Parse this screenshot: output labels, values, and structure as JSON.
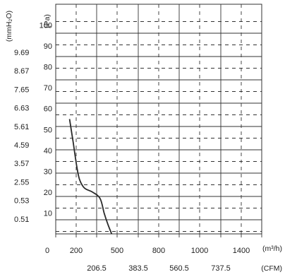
{
  "chart_data": {
    "type": "line",
    "title": "",
    "y_unit_pa": "(Pa)",
    "y_unit_mmh2o": "(mmH₂O)",
    "x_unit_m3h": "(m³/h)",
    "x_unit_cfm": "(CFM)",
    "x_zero_label": "0",
    "pa_ticks": [
      "10",
      "20",
      "30",
      "40",
      "50",
      "60",
      "70",
      "80",
      "90",
      "100"
    ],
    "mmh2o_ticks": [
      "0.51",
      "0.53",
      "2.55",
      "3.57",
      "4.59",
      "5.61",
      "6.63",
      "7.65",
      "8.67",
      "9.69"
    ],
    "m3h_ticks": [
      "200",
      "500",
      "800",
      "1000",
      "1400"
    ],
    "cfm_ticks": [
      "206.5",
      "383.5",
      "560.5",
      "737.5"
    ],
    "xlim": [
      0,
      1600
    ],
    "ylim": [
      0,
      110
    ],
    "series": [
      {
        "values_x": [
          135,
          170,
          205,
          225,
          260,
          320,
          375,
          405,
          430,
          460
        ],
        "values_y": [
          55,
          44,
          32,
          26,
          22,
          20,
          17,
          10,
          5,
          0
        ]
      }
    ]
  }
}
